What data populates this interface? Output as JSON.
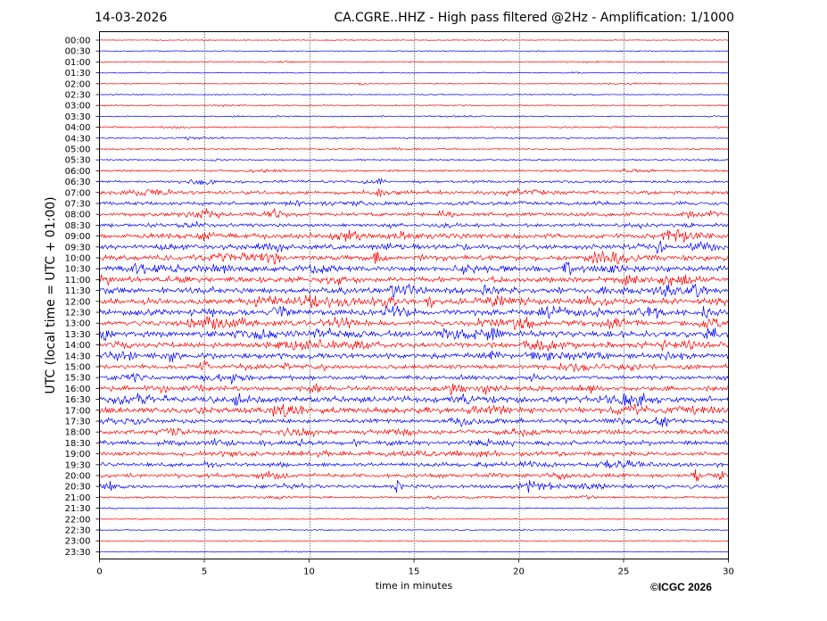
{
  "header": {
    "date": "14-03-2026",
    "title": "CA.CGRE..HHZ - High pass filtered @2Hz - Amplification: 1/1000"
  },
  "credit": "©ICGC 2026",
  "chart_data": {
    "type": "line",
    "title": "CA.CGRE..HHZ - High pass filtered @2Hz - Amplification: 1/1000",
    "xlabel": "time in minutes",
    "ylabel": "UTC (local time = UTC + 01:00)",
    "xlim": [
      0,
      30
    ],
    "x_ticks": [
      0,
      5,
      10,
      15,
      20,
      25,
      30
    ],
    "grid": "vertical dotted lines at 5-minute intervals",
    "row_colors": [
      "#ff0000",
      "#0000ff"
    ],
    "rows": [
      "00:00",
      "00:30",
      "01:00",
      "01:30",
      "02:00",
      "02:30",
      "03:00",
      "03:30",
      "04:00",
      "04:30",
      "05:00",
      "05:30",
      "06:00",
      "06:30",
      "07:00",
      "07:30",
      "08:00",
      "08:30",
      "09:00",
      "09:30",
      "10:00",
      "10:30",
      "11:00",
      "11:30",
      "12:00",
      "12:30",
      "13:00",
      "13:30",
      "14:00",
      "14:30",
      "15:00",
      "15:30",
      "16:00",
      "16:30",
      "17:00",
      "17:30",
      "18:00",
      "18:30",
      "19:00",
      "19:30",
      "20:00",
      "20:30",
      "21:00",
      "21:30",
      "22:00",
      "22:30",
      "23:00",
      "23:30"
    ],
    "row_noise_level": [
      0.2,
      0.2,
      0.25,
      0.25,
      0.25,
      0.25,
      0.3,
      0.3,
      0.35,
      0.35,
      0.35,
      0.35,
      0.45,
      0.6,
      0.8,
      0.8,
      0.8,
      0.8,
      1.1,
      1.1,
      1.2,
      1.2,
      1.2,
      1.3,
      1.3,
      1.4,
      1.3,
      1.3,
      1.2,
      1.2,
      1.0,
      1.0,
      1.1,
      1.4,
      1.3,
      1.0,
      1.0,
      1.0,
      1.0,
      0.9,
      0.9,
      0.8,
      0.5,
      0.3,
      0.25,
      0.25,
      0.2,
      0.2
    ],
    "events": [
      {
        "row": "08:00",
        "t": 8.5
      },
      {
        "row": "09:00",
        "t": 12
      },
      {
        "row": "09:30",
        "t": 26.7
      },
      {
        "row": "10:00",
        "t": 13.3
      },
      {
        "row": "10:30",
        "t": 22.3
      },
      {
        "row": "11:00",
        "t": 25
      },
      {
        "row": "12:00",
        "t": 15.8
      },
      {
        "row": "12:30",
        "t": 28.9
      },
      {
        "row": "13:30",
        "t": 0.3
      },
      {
        "row": "14:30",
        "t": 3.5
      },
      {
        "row": "15:00",
        "t": 5
      },
      {
        "row": "16:00",
        "t": 16.8
      },
      {
        "row": "16:30",
        "t": 6.5
      },
      {
        "row": "20:00",
        "t": 28.5
      },
      {
        "row": "20:30",
        "t": 14.3
      },
      {
        "row": "20:30",
        "t": 0.5
      },
      {
        "row": "20:30",
        "t": 20.5
      }
    ]
  }
}
